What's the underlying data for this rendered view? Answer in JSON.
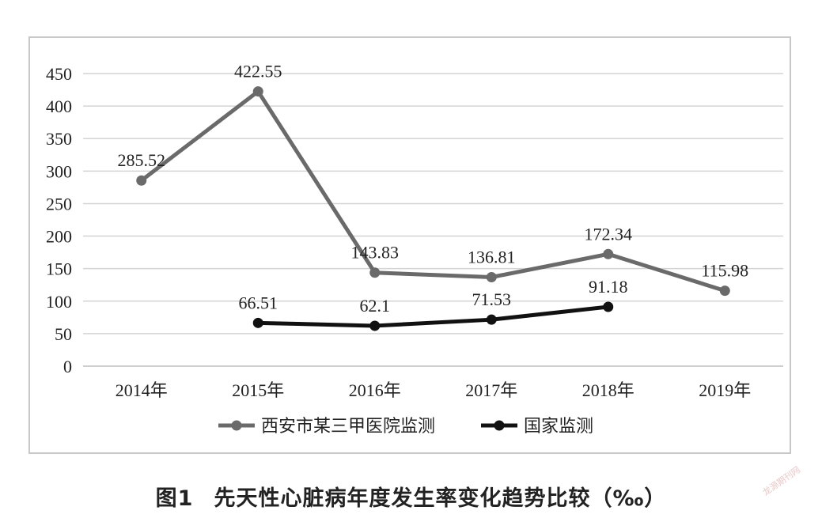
{
  "chart_data": {
    "type": "line",
    "categories": [
      "2014年",
      "2015年",
      "2016年",
      "2017年",
      "2018年",
      "2019年"
    ],
    "series": [
      {
        "name": "西安市某三甲医院监测",
        "color": "#6a6a6a",
        "values": [
          285.52,
          422.55,
          143.83,
          136.81,
          172.34,
          115.98
        ],
        "labels": [
          "285.52",
          "422.55",
          "143.83",
          "136.81",
          "172.34",
          "115.98"
        ]
      },
      {
        "name": "国家监测",
        "color": "#111111",
        "values": [
          null,
          66.51,
          62.1,
          71.53,
          91.18,
          null
        ],
        "labels": [
          "",
          "66.51",
          "62.1",
          "71.53",
          "91.18",
          ""
        ]
      }
    ],
    "y_ticks": [
      "0",
      "50",
      "100",
      "150",
      "200",
      "250",
      "300",
      "350",
      "400",
      "450"
    ],
    "ylim": [
      0,
      450
    ],
    "grid": true,
    "legend_position": "bottom"
  },
  "caption": {
    "figure_number": "图1",
    "title": "先天性心脏病年度发生率变化趋势比较（‰）"
  },
  "watermark": "龙源期刊网"
}
